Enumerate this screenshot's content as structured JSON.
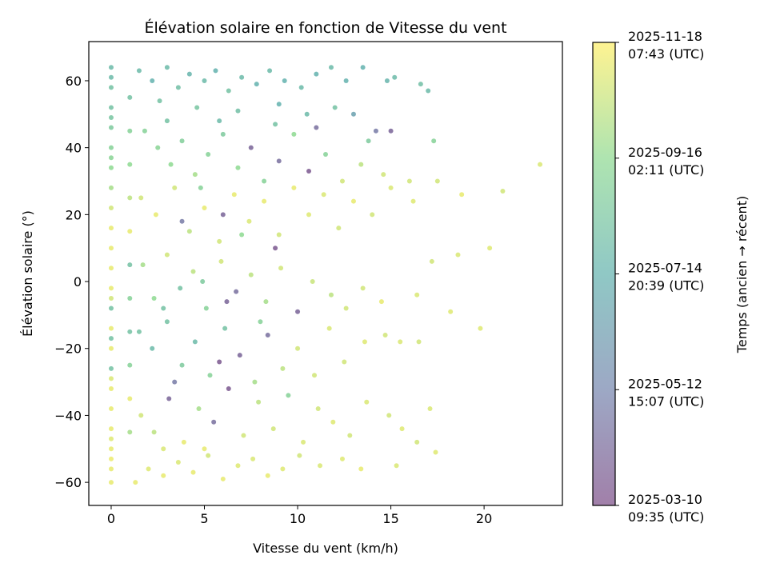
{
  "chart_data": {
    "type": "scatter",
    "title": "Élévation solaire en fonction de Vitesse du vent",
    "xlabel": "Vitesse du vent (km/h)",
    "ylabel": "Élévation solaire (°)",
    "xlim": [
      -1.2,
      24.2
    ],
    "ylim": [
      -66.9,
      71.7
    ],
    "xticks": [
      0,
      5,
      10,
      15,
      20
    ],
    "yticks": [
      -60,
      -40,
      -20,
      0,
      20,
      40,
      60
    ],
    "grid": false,
    "colorbar": {
      "label": "Temps (ancien → récent)",
      "colormap": "viridis",
      "ticks": [
        {
          "pos": 0,
          "line1": "2025-03-10",
          "line2": "09:35 (UTC)"
        },
        {
          "pos": 0.25,
          "line1": "2025-05-12",
          "line2": "15:07 (UTC)"
        },
        {
          "pos": 0.5,
          "line1": "2025-07-14",
          "line2": "20:39 (UTC)"
        },
        {
          "pos": 0.75,
          "line1": "2025-09-16",
          "line2": "02:11 (UTC)"
        },
        {
          "pos": 1,
          "line1": "2025-11-18",
          "line2": "07:43 (UTC)"
        }
      ]
    },
    "point_fields": [
      "wind_kmh",
      "elevation_deg",
      "time_fraction"
    ],
    "points": [
      [
        0,
        64,
        0.55
      ],
      [
        0,
        58,
        0.6
      ],
      [
        0,
        52,
        0.6
      ],
      [
        0,
        46,
        0.65
      ],
      [
        0,
        40,
        0.7
      ],
      [
        0,
        34,
        0.75
      ],
      [
        0,
        28,
        0.8
      ],
      [
        0,
        22,
        0.9
      ],
      [
        0,
        16,
        0.95
      ],
      [
        0,
        10,
        0.95
      ],
      [
        0,
        4,
        0.95
      ],
      [
        0,
        -2,
        0.95
      ],
      [
        0,
        -8,
        0.6
      ],
      [
        0,
        -14,
        0.95
      ],
      [
        0,
        -20,
        0.95
      ],
      [
        0,
        -26,
        0.6
      ],
      [
        0,
        -32,
        0.95
      ],
      [
        0,
        -38,
        0.95
      ],
      [
        0,
        -44,
        0.95
      ],
      [
        0,
        -50,
        0.95
      ],
      [
        0,
        -56,
        0.95
      ],
      [
        0,
        -60,
        0.95
      ],
      [
        0,
        61,
        0.55
      ],
      [
        0,
        49,
        0.62
      ],
      [
        0,
        37,
        0.72
      ],
      [
        0,
        -5,
        0.9
      ],
      [
        0,
        -17,
        0.6
      ],
      [
        0,
        -29,
        0.92
      ],
      [
        0,
        -47,
        0.93
      ],
      [
        0,
        -53,
        0.96
      ],
      [
        1,
        55,
        0.6
      ],
      [
        1,
        45,
        0.7
      ],
      [
        1,
        35,
        0.75
      ],
      [
        1,
        25,
        0.85
      ],
      [
        1,
        15,
        0.95
      ],
      [
        1,
        5,
        0.6
      ],
      [
        1,
        -5,
        0.7
      ],
      [
        1,
        -15,
        0.6
      ],
      [
        1,
        -25,
        0.7
      ],
      [
        1,
        -35,
        0.95
      ],
      [
        1,
        -45,
        0.8
      ],
      [
        1.5,
        63,
        0.55
      ],
      [
        2.2,
        60,
        0.5
      ],
      [
        3,
        64,
        0.55
      ],
      [
        3.6,
        58,
        0.58
      ],
      [
        4.2,
        62,
        0.52
      ],
      [
        5,
        60,
        0.55
      ],
      [
        5.6,
        63,
        0.5
      ],
      [
        6.3,
        57,
        0.6
      ],
      [
        7,
        61,
        0.55
      ],
      [
        7.8,
        59,
        0.5
      ],
      [
        8.5,
        63,
        0.55
      ],
      [
        9.3,
        60,
        0.5
      ],
      [
        10.2,
        58,
        0.55
      ],
      [
        11,
        62,
        0.5
      ],
      [
        11.8,
        64,
        0.55
      ],
      [
        12.6,
        60,
        0.5
      ],
      [
        13.5,
        64,
        0.5
      ],
      [
        14.8,
        60,
        0.52
      ],
      [
        15.2,
        61,
        0.55
      ],
      [
        16.6,
        59,
        0.58
      ],
      [
        17,
        57,
        0.55
      ],
      [
        2.6,
        54,
        0.6
      ],
      [
        4.6,
        52,
        0.62
      ],
      [
        6.8,
        51,
        0.58
      ],
      [
        9,
        53,
        0.5
      ],
      [
        10.5,
        50,
        0.55
      ],
      [
        12,
        52,
        0.6
      ],
      [
        13,
        50,
        0.4
      ],
      [
        14.2,
        45,
        0.2
      ],
      [
        15,
        45,
        0.1
      ],
      [
        13.8,
        42,
        0.65
      ],
      [
        17.3,
        42,
        0.7
      ],
      [
        1.8,
        45,
        0.7
      ],
      [
        2.5,
        40,
        0.72
      ],
      [
        3.2,
        35,
        0.75
      ],
      [
        3.8,
        42,
        0.68
      ],
      [
        4.5,
        32,
        0.8
      ],
      [
        5.2,
        38,
        0.7
      ],
      [
        6,
        44,
        0.65
      ],
      [
        6.8,
        34,
        0.75
      ],
      [
        7.5,
        40,
        0.1
      ],
      [
        8.2,
        30,
        0.7
      ],
      [
        9,
        36,
        0.15
      ],
      [
        9.8,
        44,
        0.75
      ],
      [
        10.6,
        33,
        0.05
      ],
      [
        11.5,
        38,
        0.7
      ],
      [
        12.4,
        30,
        0.9
      ],
      [
        13.4,
        35,
        0.85
      ],
      [
        14.6,
        32,
        0.9
      ],
      [
        16,
        30,
        0.9
      ],
      [
        3,
        48,
        0.6
      ],
      [
        5.8,
        48,
        0.55
      ],
      [
        8.8,
        47,
        0.6
      ],
      [
        11,
        46,
        0.15
      ],
      [
        1.6,
        25,
        0.9
      ],
      [
        2.4,
        20,
        0.95
      ],
      [
        3.4,
        28,
        0.9
      ],
      [
        4.2,
        15,
        0.85
      ],
      [
        5,
        22,
        0.95
      ],
      [
        5.8,
        12,
        0.9
      ],
      [
        6.6,
        26,
        0.95
      ],
      [
        7.4,
        18,
        0.92
      ],
      [
        8.2,
        24,
        0.95
      ],
      [
        9,
        14,
        0.9
      ],
      [
        9.8,
        28,
        0.95
      ],
      [
        10.6,
        20,
        0.93
      ],
      [
        11.4,
        26,
        0.92
      ],
      [
        12.2,
        16,
        0.9
      ],
      [
        13,
        24,
        0.95
      ],
      [
        14,
        20,
        0.9
      ],
      [
        15,
        28,
        0.92
      ],
      [
        16.2,
        24,
        0.93
      ],
      [
        17.5,
        30,
        0.9
      ],
      [
        18.8,
        26,
        0.95
      ],
      [
        20.3,
        10,
        0.93
      ],
      [
        21,
        27,
        0.9
      ],
      [
        23,
        35,
        0.92
      ],
      [
        3.8,
        18,
        0.2
      ],
      [
        6,
        20,
        0.1
      ],
      [
        8.8,
        10,
        0.05
      ],
      [
        4.8,
        28,
        0.7
      ],
      [
        7,
        14,
        0.75
      ],
      [
        1.7,
        5,
        0.8
      ],
      [
        2.3,
        -5,
        0.75
      ],
      [
        3,
        8,
        0.9
      ],
      [
        3.7,
        -2,
        0.6
      ],
      [
        4.4,
        3,
        0.85
      ],
      [
        5.1,
        -8,
        0.7
      ],
      [
        5.9,
        6,
        0.9
      ],
      [
        6.7,
        -3,
        0.15
      ],
      [
        7.5,
        2,
        0.85
      ],
      [
        8.3,
        -6,
        0.8
      ],
      [
        9.1,
        4,
        0.9
      ],
      [
        10,
        -9,
        0.1
      ],
      [
        10.8,
        0,
        0.88
      ],
      [
        11.8,
        -4,
        0.85
      ],
      [
        12.6,
        -8,
        0.9
      ],
      [
        13.5,
        -2,
        0.9
      ],
      [
        14.5,
        -6,
        0.95
      ],
      [
        16.4,
        -4,
        0.92
      ],
      [
        17.2,
        6,
        0.9
      ],
      [
        18.2,
        -9,
        0.93
      ],
      [
        18.6,
        8,
        0.92
      ],
      [
        2.8,
        -8,
        0.6
      ],
      [
        4.9,
        0,
        0.65
      ],
      [
        6.2,
        -6,
        0.1
      ],
      [
        1.5,
        -15,
        0.6
      ],
      [
        2.2,
        -20,
        0.55
      ],
      [
        3,
        -12,
        0.6
      ],
      [
        3.8,
        -25,
        0.65
      ],
      [
        4.5,
        -18,
        0.55
      ],
      [
        5.3,
        -28,
        0.7
      ],
      [
        6.1,
        -14,
        0.6
      ],
      [
        6.9,
        -22,
        0.1
      ],
      [
        7.7,
        -30,
        0.8
      ],
      [
        8.4,
        -16,
        0.15
      ],
      [
        9.2,
        -26,
        0.85
      ],
      [
        10,
        -20,
        0.9
      ],
      [
        10.9,
        -28,
        0.9
      ],
      [
        11.7,
        -14,
        0.92
      ],
      [
        12.5,
        -24,
        0.9
      ],
      [
        13.6,
        -18,
        0.93
      ],
      [
        14.7,
        -16,
        0.9
      ],
      [
        15.5,
        -18,
        0.92
      ],
      [
        16.5,
        -18,
        0.9
      ],
      [
        19.8,
        -14,
        0.93
      ],
      [
        3.4,
        -30,
        0.2
      ],
      [
        5.8,
        -24,
        0.05
      ],
      [
        8,
        -12,
        0.7
      ],
      [
        1.6,
        -40,
        0.9
      ],
      [
        2.3,
        -45,
        0.85
      ],
      [
        3.1,
        -35,
        0.1
      ],
      [
        3.9,
        -48,
        0.95
      ],
      [
        4.7,
        -38,
        0.8
      ],
      [
        5.5,
        -42,
        0.15
      ],
      [
        6.3,
        -32,
        0.05
      ],
      [
        7.1,
        -46,
        0.9
      ],
      [
        7.9,
        -36,
        0.85
      ],
      [
        8.7,
        -44,
        0.9
      ],
      [
        9.5,
        -34,
        0.7
      ],
      [
        10.3,
        -48,
        0.92
      ],
      [
        11.1,
        -38,
        0.9
      ],
      [
        11.9,
        -42,
        0.93
      ],
      [
        12.8,
        -46,
        0.9
      ],
      [
        13.7,
        -36,
        0.92
      ],
      [
        14.9,
        -40,
        0.9
      ],
      [
        15.6,
        -44,
        0.93
      ],
      [
        17.1,
        -38,
        0.92
      ],
      [
        2.8,
        -50,
        0.92
      ],
      [
        5,
        -50,
        0.95
      ],
      [
        1.3,
        -60,
        0.95
      ],
      [
        2,
        -56,
        0.93
      ],
      [
        2.8,
        -58,
        0.95
      ],
      [
        3.6,
        -54,
        0.92
      ],
      [
        4.4,
        -57,
        0.95
      ],
      [
        5.2,
        -52,
        0.9
      ],
      [
        6,
        -59,
        0.95
      ],
      [
        6.8,
        -55,
        0.93
      ],
      [
        7.6,
        -53,
        0.92
      ],
      [
        8.4,
        -58,
        0.95
      ],
      [
        9.2,
        -56,
        0.93
      ],
      [
        10.1,
        -52,
        0.9
      ],
      [
        11.2,
        -55,
        0.92
      ],
      [
        12.4,
        -53,
        0.93
      ],
      [
        13.4,
        -56,
        0.95
      ],
      [
        15.3,
        -55,
        0.92
      ],
      [
        16.4,
        -48,
        0.9
      ],
      [
        17.4,
        -51,
        0.93
      ]
    ]
  },
  "colors": {
    "viridis": [
      "#440154",
      "#3b528b",
      "#21918c",
      "#5ec962",
      "#fde725"
    ]
  }
}
